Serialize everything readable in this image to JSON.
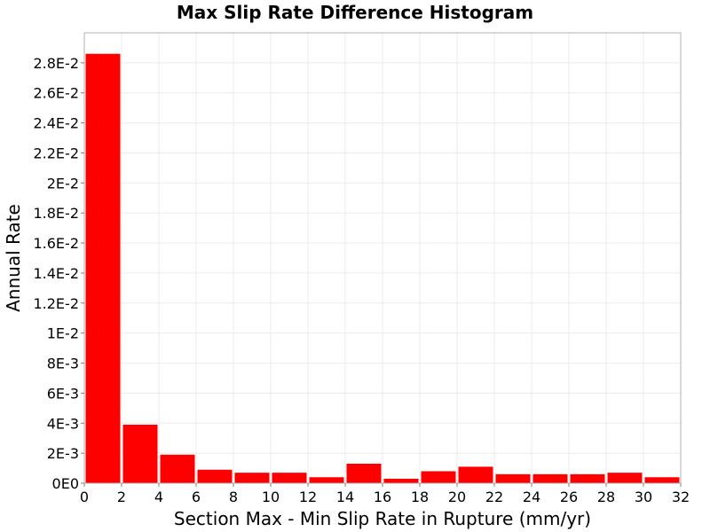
{
  "chart_data": {
    "type": "bar",
    "title": "Max Slip Rate Difference Histogram",
    "xlabel": "Section Max - Min Slip Rate in Rupture (mm/yr)",
    "ylabel": "Annual Rate",
    "xlim": [
      0,
      32
    ],
    "ylim": [
      0,
      0.03
    ],
    "bin_width": 2,
    "bins": [
      {
        "x_start": 0,
        "x_end": 2,
        "value": 0.0286
      },
      {
        "x_start": 2,
        "x_end": 4,
        "value": 0.0039
      },
      {
        "x_start": 4,
        "x_end": 6,
        "value": 0.0019
      },
      {
        "x_start": 6,
        "x_end": 8,
        "value": 0.0009
      },
      {
        "x_start": 8,
        "x_end": 10,
        "value": 0.0007
      },
      {
        "x_start": 10,
        "x_end": 12,
        "value": 0.0007
      },
      {
        "x_start": 12,
        "x_end": 14,
        "value": 0.0004
      },
      {
        "x_start": 14,
        "x_end": 16,
        "value": 0.0013
      },
      {
        "x_start": 16,
        "x_end": 18,
        "value": 0.0003
      },
      {
        "x_start": 18,
        "x_end": 20,
        "value": 0.0008
      },
      {
        "x_start": 20,
        "x_end": 22,
        "value": 0.0011
      },
      {
        "x_start": 22,
        "x_end": 24,
        "value": 0.0006
      },
      {
        "x_start": 24,
        "x_end": 26,
        "value": 0.0006
      },
      {
        "x_start": 26,
        "x_end": 28,
        "value": 0.0006
      },
      {
        "x_start": 28,
        "x_end": 30,
        "value": 0.0007
      },
      {
        "x_start": 30,
        "x_end": 32,
        "value": 0.0004
      }
    ],
    "x_ticks": [
      0,
      2,
      4,
      6,
      8,
      10,
      12,
      14,
      16,
      18,
      20,
      22,
      24,
      26,
      28,
      30,
      32
    ],
    "x_tick_labels": [
      "0",
      "2",
      "4",
      "6",
      "8",
      "10",
      "12",
      "14",
      "16",
      "18",
      "20",
      "22",
      "24",
      "26",
      "28",
      "30",
      "32"
    ],
    "y_ticks": [
      0,
      0.002,
      0.004,
      0.006,
      0.008,
      0.01,
      0.012,
      0.014,
      0.016,
      0.018,
      0.02,
      0.022,
      0.024,
      0.026,
      0.028
    ],
    "y_tick_labels": [
      "0E0",
      "2E-3",
      "4E-3",
      "6E-3",
      "8E-3",
      "1E-2",
      "1.2E-2",
      "1.4E-2",
      "1.6E-2",
      "1.8E-2",
      "2E-2",
      "2.2E-2",
      "2.4E-2",
      "2.6E-2",
      "2.8E-2"
    ],
    "grid": true,
    "bar_color": "#ff0000",
    "grid_color": "#ebebeb",
    "frame_color": "#b0b0b0",
    "legend": "none"
  }
}
